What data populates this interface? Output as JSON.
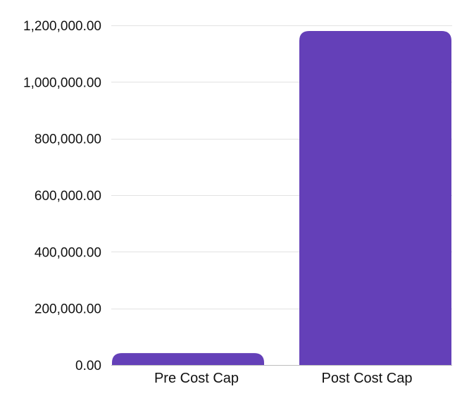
{
  "chart_data": {
    "type": "bar",
    "categories": [
      "Pre Cost Cap",
      "Post Cost Cap"
    ],
    "values": [
      42000,
      1180000
    ],
    "ylim": [
      0,
      1200000
    ],
    "yticks": [
      0,
      200000,
      400000,
      600000,
      800000,
      1000000,
      1200000
    ],
    "ytick_labels": [
      "0.00",
      "200,000.00",
      "400,000.00",
      "600,000.00",
      "800,000.00",
      "1,000,000.00",
      "1,200,000.00"
    ],
    "title": "",
    "xlabel": "",
    "ylabel": "",
    "grid": true,
    "legend": "none",
    "bar_color": "#6440b8"
  }
}
